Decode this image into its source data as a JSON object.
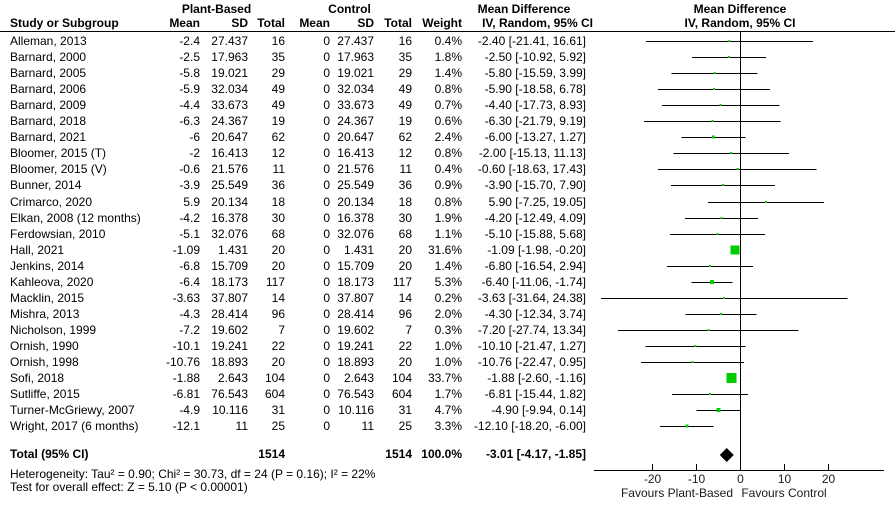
{
  "table": {
    "group1_label": "Plant-Based",
    "group2_label": "Control",
    "md_col_header": "Mean Difference",
    "md_col_subheader": "IV, Random, 95% CI",
    "plot_header_line1": "Mean Difference",
    "plot_header_line2": "IV, Random, 95% CI",
    "col_headers": {
      "study": "Study or Subgroup",
      "mean1": "Mean",
      "sd1": "SD",
      "total1": "Total",
      "mean2": "Mean",
      "sd2": "SD",
      "total2": "Total",
      "weight": "Weight"
    }
  },
  "chart_data": {
    "type": "forest",
    "effect_measure": "Mean Difference (IV, Random, 95% CI)",
    "x_ticks": [
      -20,
      -10,
      0,
      10,
      20
    ],
    "x_axis_range": [
      -33,
      33
    ],
    "axis_labels": {
      "left": "Favours Plant-Based",
      "right": "Favours Control"
    },
    "studies": [
      {
        "name": "Alleman, 2013",
        "mean": -2.4,
        "sd": 27.437,
        "total": 16,
        "c_mean": 0,
        "c_sd": 27.437,
        "c_total": 16,
        "weight": "0.4%",
        "md": -2.4,
        "lo": -21.41,
        "hi": 16.61,
        "ci_text": "-2.40 [-21.41, 16.61]"
      },
      {
        "name": "Barnard, 2000",
        "mean": -2.5,
        "sd": 17.963,
        "total": 35,
        "c_mean": 0,
        "c_sd": 17.963,
        "c_total": 35,
        "weight": "1.8%",
        "md": -2.5,
        "lo": -10.92,
        "hi": 5.92,
        "ci_text": "-2.50 [-10.92, 5.92]"
      },
      {
        "name": "Barnard, 2005",
        "mean": -5.8,
        "sd": 19.021,
        "total": 29,
        "c_mean": 0,
        "c_sd": 19.021,
        "c_total": 29,
        "weight": "1.4%",
        "md": -5.8,
        "lo": -15.59,
        "hi": 3.99,
        "ci_text": "-5.80 [-15.59, 3.99]"
      },
      {
        "name": "Barnard, 2006",
        "mean": -5.9,
        "sd": 32.034,
        "total": 49,
        "c_mean": 0,
        "c_sd": 32.034,
        "c_total": 49,
        "weight": "0.8%",
        "md": -5.9,
        "lo": -18.58,
        "hi": 6.78,
        "ci_text": "-5.90 [-18.58, 6.78]"
      },
      {
        "name": "Barnard, 2009",
        "mean": -4.4,
        "sd": 33.673,
        "total": 49,
        "c_mean": 0,
        "c_sd": 33.673,
        "c_total": 49,
        "weight": "0.7%",
        "md": -4.4,
        "lo": -17.73,
        "hi": 8.93,
        "ci_text": "-4.40 [-17.73, 8.93]"
      },
      {
        "name": "Barnard, 2018",
        "mean": -6.3,
        "sd": 24.367,
        "total": 19,
        "c_mean": 0,
        "c_sd": 24.367,
        "c_total": 19,
        "weight": "0.6%",
        "md": -6.3,
        "lo": -21.79,
        "hi": 9.19,
        "ci_text": "-6.30 [-21.79, 9.19]"
      },
      {
        "name": "Barnard, 2021",
        "mean": -6,
        "sd": 20.647,
        "total": 62,
        "c_mean": 0,
        "c_sd": 20.647,
        "c_total": 62,
        "weight": "2.4%",
        "md": -6,
        "lo": -13.27,
        "hi": 1.27,
        "ci_text": "-6.00 [-13.27, 1.27]"
      },
      {
        "name": "Bloomer, 2015 (T)",
        "mean": -2,
        "sd": 16.413,
        "total": 12,
        "c_mean": 0,
        "c_sd": 16.413,
        "c_total": 12,
        "weight": "0.8%",
        "md": -2,
        "lo": -15.13,
        "hi": 11.13,
        "ci_text": "-2.00 [-15.13, 11.13]"
      },
      {
        "name": "Bloomer, 2015 (V)",
        "mean": -0.6,
        "sd": 21.576,
        "total": 11,
        "c_mean": 0,
        "c_sd": 21.576,
        "c_total": 11,
        "weight": "0.4%",
        "md": -0.6,
        "lo": -18.63,
        "hi": 17.43,
        "ci_text": "-0.60 [-18.63, 17.43]"
      },
      {
        "name": "Bunner, 2014",
        "mean": -3.9,
        "sd": 25.549,
        "total": 36,
        "c_mean": 0,
        "c_sd": 25.549,
        "c_total": 36,
        "weight": "0.9%",
        "md": -3.9,
        "lo": -15.7,
        "hi": 7.9,
        "ci_text": "-3.90 [-15.70, 7.90]"
      },
      {
        "name": "Crimarco, 2020",
        "mean": 5.9,
        "sd": 20.134,
        "total": 18,
        "c_mean": 0,
        "c_sd": 20.134,
        "c_total": 18,
        "weight": "0.8%",
        "md": 5.9,
        "lo": -7.25,
        "hi": 19.05,
        "ci_text": "5.90 [-7.25, 19.05]"
      },
      {
        "name": "Elkan, 2008 (12 months)",
        "mean": -4.2,
        "sd": 16.378,
        "total": 30,
        "c_mean": 0,
        "c_sd": 16.378,
        "c_total": 30,
        "weight": "1.9%",
        "md": -4.2,
        "lo": -12.49,
        "hi": 4.09,
        "ci_text": "-4.20 [-12.49, 4.09]"
      },
      {
        "name": "Ferdowsian, 2010",
        "mean": -5.1,
        "sd": 32.076,
        "total": 68,
        "c_mean": 0,
        "c_sd": 32.076,
        "c_total": 68,
        "weight": "1.1%",
        "md": -5.1,
        "lo": -15.88,
        "hi": 5.68,
        "ci_text": "-5.10 [-15.88, 5.68]"
      },
      {
        "name": "Hall, 2021",
        "mean": -1.09,
        "sd": 1.431,
        "total": 20,
        "c_mean": 0,
        "c_sd": 1.431,
        "c_total": 20,
        "weight": "31.6%",
        "md": -1.09,
        "lo": -1.98,
        "hi": -0.2,
        "ci_text": "-1.09 [-1.98, -0.20]"
      },
      {
        "name": "Jenkins, 2014",
        "mean": -6.8,
        "sd": 15.709,
        "total": 20,
        "c_mean": 0,
        "c_sd": 15.709,
        "c_total": 20,
        "weight": "1.4%",
        "md": -6.8,
        "lo": -16.54,
        "hi": 2.94,
        "ci_text": "-6.80 [-16.54, 2.94]"
      },
      {
        "name": "Kahleova, 2020",
        "mean": -6.4,
        "sd": 18.173,
        "total": 117,
        "c_mean": 0,
        "c_sd": 18.173,
        "c_total": 117,
        "weight": "5.3%",
        "md": -6.4,
        "lo": -11.06,
        "hi": -1.74,
        "ci_text": "-6.40 [-11.06, -1.74]"
      },
      {
        "name": "Macklin, 2015",
        "mean": -3.63,
        "sd": 37.807,
        "total": 14,
        "c_mean": 0,
        "c_sd": 37.807,
        "c_total": 14,
        "weight": "0.2%",
        "md": -3.63,
        "lo": -31.64,
        "hi": 24.38,
        "ci_text": "-3.63 [-31.64, 24.38]"
      },
      {
        "name": "Mishra, 2013",
        "mean": -4.3,
        "sd": 28.414,
        "total": 96,
        "c_mean": 0,
        "c_sd": 28.414,
        "c_total": 96,
        "weight": "2.0%",
        "md": -4.3,
        "lo": -12.34,
        "hi": 3.74,
        "ci_text": "-4.30 [-12.34, 3.74]"
      },
      {
        "name": "Nicholson, 1999",
        "mean": -7.2,
        "sd": 19.602,
        "total": 7,
        "c_mean": 0,
        "c_sd": 19.602,
        "c_total": 7,
        "weight": "0.3%",
        "md": -7.2,
        "lo": -27.74,
        "hi": 13.34,
        "ci_text": "-7.20 [-27.74, 13.34]"
      },
      {
        "name": "Ornish, 1990",
        "mean": -10.1,
        "sd": 19.241,
        "total": 22,
        "c_mean": 0,
        "c_sd": 19.241,
        "c_total": 22,
        "weight": "1.0%",
        "md": -10.1,
        "lo": -21.47,
        "hi": 1.27,
        "ci_text": "-10.10 [-21.47, 1.27]"
      },
      {
        "name": "Ornish, 1998",
        "mean": -10.76,
        "sd": 18.893,
        "total": 20,
        "c_mean": 0,
        "c_sd": 18.893,
        "c_total": 20,
        "weight": "1.0%",
        "md": -10.76,
        "lo": -22.47,
        "hi": 0.95,
        "ci_text": "-10.76 [-22.47, 0.95]"
      },
      {
        "name": "Sofi, 2018",
        "mean": -1.88,
        "sd": 2.643,
        "total": 104,
        "c_mean": 0,
        "c_sd": 2.643,
        "c_total": 104,
        "weight": "33.7%",
        "md": -1.88,
        "lo": -2.6,
        "hi": -1.16,
        "ci_text": "-1.88 [-2.60, -1.16]"
      },
      {
        "name": "Sutliffe, 2015",
        "mean": -6.81,
        "sd": 76.543,
        "total": 604,
        "c_mean": 0,
        "c_sd": 76.543,
        "c_total": 604,
        "weight": "1.7%",
        "md": -6.81,
        "lo": -15.44,
        "hi": 1.82,
        "ci_text": "-6.81 [-15.44, 1.82]"
      },
      {
        "name": "Turner-McGriewy, 2007",
        "mean": -4.9,
        "sd": 10.116,
        "total": 31,
        "c_mean": 0,
        "c_sd": 10.116,
        "c_total": 31,
        "weight": "4.7%",
        "md": -4.9,
        "lo": -9.94,
        "hi": 0.14,
        "ci_text": "-4.90 [-9.94, 0.14]"
      },
      {
        "name": "Wright, 2017 (6 months)",
        "mean": -12.1,
        "sd": 11,
        "total": 25,
        "c_mean": 0,
        "c_sd": 11,
        "c_total": 25,
        "weight": "3.3%",
        "md": -12.1,
        "lo": -18.2,
        "hi": -6.0,
        "ci_text": "-12.10 [-18.20, -6.00]"
      }
    ],
    "total": {
      "label": "Total (95% CI)",
      "total": "1514",
      "c_total": "1514",
      "weight": "100.0%",
      "md": -3.01,
      "lo": -4.17,
      "hi": -1.85,
      "ci_text": "-3.01 [-4.17, -1.85]"
    }
  },
  "footer": {
    "heterogeneity": "Heterogeneity: Tau² = 0.90; Chi² = 30.73, df = 24 (P = 0.16); I² = 22%",
    "overall_effect": "Test for overall effect: Z = 5.10 (P < 0.00001)"
  },
  "colors": {
    "marker_green": "#00CC00",
    "line_black": "#000000",
    "diamond_black": "#000000"
  }
}
